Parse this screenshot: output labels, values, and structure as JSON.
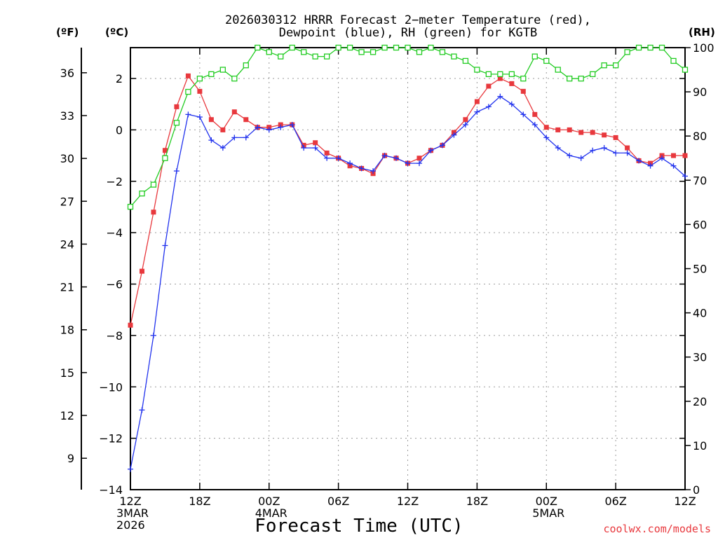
{
  "chart_data": {
    "type": "line",
    "title_line1": "2026030312 HRRR Forecast 2−meter Temperature (red),",
    "title_line2": "Dewpoint (blue), RH (green) for KGTB",
    "xlabel": "Forecast Time (UTC)",
    "credit": "coolwx.com/models",
    "units": {
      "fahrenheit": "(ºF)",
      "celsius": "(ºC)",
      "rh": "(RH)"
    },
    "x_range_hours": [
      0,
      48
    ],
    "celsius_range": [
      -14,
      3.2
    ],
    "rh_range": [
      0,
      100
    ],
    "fahrenheit_ticks": [
      "36",
      "33",
      "30",
      "27",
      "24",
      "21",
      "18",
      "15",
      "12",
      "9"
    ],
    "celsius_ticks": [
      "2",
      "0",
      "−2",
      "−4",
      "−6",
      "−8",
      "−10",
      "−12",
      "−14"
    ],
    "rh_ticks": [
      "100",
      "90",
      "80",
      "70",
      "60",
      "50",
      "40",
      "30",
      "20",
      "10",
      "0"
    ],
    "x_ticks": [
      {
        "hour": 0,
        "lines": [
          "12Z",
          "3MAR",
          "2026"
        ]
      },
      {
        "hour": 6,
        "lines": [
          "18Z"
        ]
      },
      {
        "hour": 12,
        "lines": [
          "00Z",
          "4MAR"
        ]
      },
      {
        "hour": 18,
        "lines": [
          "06Z"
        ]
      },
      {
        "hour": 24,
        "lines": [
          "12Z"
        ]
      },
      {
        "hour": 30,
        "lines": [
          "18Z"
        ]
      },
      {
        "hour": 36,
        "lines": [
          "00Z",
          "5MAR"
        ]
      },
      {
        "hour": 42,
        "lines": [
          "06Z"
        ]
      },
      {
        "hour": 48,
        "lines": [
          "12Z"
        ]
      }
    ],
    "series": [
      {
        "name": "Temperature (°C)",
        "color": "#e8383d",
        "marker": "filled-square",
        "values": [
          -7.6,
          -5.5,
          -3.2,
          -0.8,
          0.9,
          2.1,
          1.5,
          0.4,
          0.0,
          0.7,
          0.4,
          0.1,
          0.1,
          0.2,
          0.2,
          -0.6,
          -0.5,
          -0.9,
          -1.1,
          -1.4,
          -1.5,
          -1.7,
          -1.0,
          -1.1,
          -1.3,
          -1.1,
          -0.8,
          -0.6,
          -0.1,
          0.4,
          1.1,
          1.7,
          2.0,
          1.8,
          1.5,
          0.6,
          0.1,
          0.0,
          0.0,
          -0.1,
          -0.1,
          -0.2,
          -0.3,
          -0.7,
          -1.2,
          -1.3,
          -1.0,
          -1.0,
          -1.0
        ]
      },
      {
        "name": "Dewpoint (°C)",
        "color": "#2233ee",
        "marker": "plus",
        "values": [
          -13.2,
          -10.9,
          -8.0,
          -4.5,
          -1.6,
          0.6,
          0.5,
          -0.4,
          -0.7,
          -0.3,
          -0.3,
          0.1,
          0.0,
          0.1,
          0.2,
          -0.7,
          -0.7,
          -1.1,
          -1.1,
          -1.3,
          -1.5,
          -1.6,
          -1.0,
          -1.1,
          -1.3,
          -1.3,
          -0.8,
          -0.6,
          -0.2,
          0.2,
          0.7,
          0.9,
          1.3,
          1.0,
          0.6,
          0.2,
          -0.3,
          -0.7,
          -1.0,
          -1.1,
          -0.8,
          -0.7,
          -0.9,
          -0.9,
          -1.2,
          -1.4,
          -1.1,
          -1.4,
          -1.8
        ]
      },
      {
        "name": "RH (%)",
        "color": "#22cc22",
        "marker": "open-square",
        "values": [
          64,
          67,
          69,
          75,
          83,
          90,
          93,
          94,
          95,
          93,
          96,
          100,
          99,
          98,
          100,
          99,
          98,
          98,
          100,
          100,
          99,
          99,
          100,
          100,
          100,
          99,
          100,
          99,
          98,
          97,
          95,
          94,
          94,
          94,
          93,
          98,
          97,
          95,
          93,
          93,
          94,
          96,
          96,
          99,
          100,
          100,
          100,
          97,
          95
        ]
      }
    ]
  }
}
